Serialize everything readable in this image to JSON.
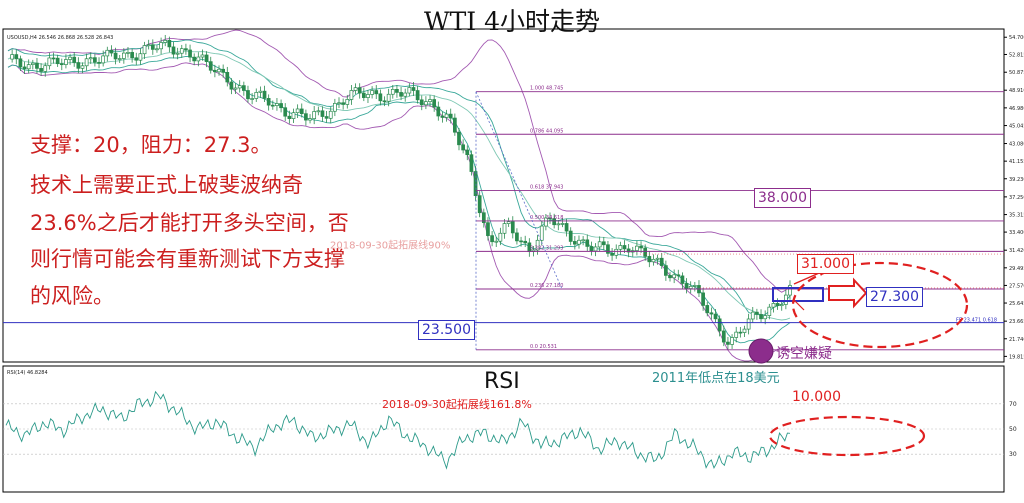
{
  "page_title": "WTI 4小时走势",
  "main_panel": {
    "symbol_header": "USOUSD,H4  26.546 26.868 26.528 26.843",
    "commentary_lines": [
      "支撑：20，阻力：27.3。",
      "技术上需要正式上破斐波纳奇",
      "23.6%之后才能打开多头空间，否",
      "则行情可能会有重新测试下方支撑",
      "的风险。"
    ],
    "level_boxes": {
      "l38": "38.000",
      "l31": "31.000",
      "l27": "27.300",
      "l235": "23.500"
    },
    "fib_labels": [
      "1.000 48.745",
      "0.786 44.095",
      "0.618 37.943",
      "0.500 34.618",
      "0.382 31.293",
      "0.236 27.180",
      "0.0 20.531"
    ],
    "faded_note": "2018-09-30起拓展线90%",
    "fe_label": "FE 23.471 0.618",
    "note_trap": "诱空嫌疑",
    "note_2011": "2011年低点在18美元"
  },
  "rsi_panel": {
    "title": "RSI",
    "header": "RSI(14) 46.8284",
    "ext_note": "2018-09-30起拓展线161.8%",
    "level_box": "10.000"
  },
  "colors": {
    "candle": "#2a8a4e",
    "band_outer": "#a35ab2",
    "band_mid": "#3aa89a",
    "fib": "#8c2d8c",
    "ann_red": "#e02020",
    "ann_blue": "#3030c0"
  },
  "chart_data": [
    {
      "type": "candlestick",
      "title": "",
      "symbol": "USOUSD",
      "timeframe": "H4",
      "y_axis_ticks": [
        54.7,
        52.815,
        50.875,
        48.91,
        46.98,
        45.045,
        43.08,
        41.155,
        39.23,
        37.25,
        35.315,
        33.4,
        31.42,
        29.495,
        27.57,
        25.645,
        23.665,
        21.74,
        19.815
      ],
      "ylim": [
        19.2,
        55.6
      ],
      "last_price": 26.843,
      "indicators": [
        "Bollinger Bands (two envelopes)"
      ],
      "fibonacci_retracement": [
        {
          "ratio": 1.0,
          "price": 48.745
        },
        {
          "ratio": 0.786,
          "price": 44.095
        },
        {
          "ratio": 0.618,
          "price": 37.943
        },
        {
          "ratio": 0.5,
          "price": 34.618
        },
        {
          "ratio": 0.382,
          "price": 31.293
        },
        {
          "ratio": 0.236,
          "price": 27.18
        },
        {
          "ratio": 0.0,
          "price": 20.531
        }
      ],
      "close_path": [
        52.0,
        51.6,
        51.9,
        51.8,
        52.3,
        52.4,
        52.8,
        53.5,
        53.6,
        53.2,
        51.4,
        50.2,
        48.2,
        47.8,
        46.5,
        45.7,
        46.8,
        48.2,
        48.6,
        48.4,
        48.5,
        47.8,
        45.4,
        41.0,
        32.0,
        34.0,
        31.5,
        34.8,
        33.2,
        31.8,
        31.2,
        32.1,
        30.3,
        29.1,
        27.5,
        24.5,
        21.3,
        23.6,
        25.2,
        26.8
      ]
    },
    {
      "type": "line",
      "title": "",
      "indicator": "RSI(14)",
      "current_value": 46.8284,
      "y_axis_ticks": [
        70,
        50,
        30
      ],
      "ylim": [
        0,
        100
      ],
      "values": [
        52,
        45,
        55,
        49,
        60,
        66,
        58,
        70,
        76,
        63,
        50,
        56,
        44,
        35,
        52,
        57,
        43,
        48,
        54,
        38,
        58,
        44,
        36,
        24,
        43,
        47,
        39,
        55,
        37,
        41,
        49,
        34,
        41,
        31,
        25,
        46,
        35,
        20,
        31,
        28,
        35,
        47
      ]
    }
  ]
}
